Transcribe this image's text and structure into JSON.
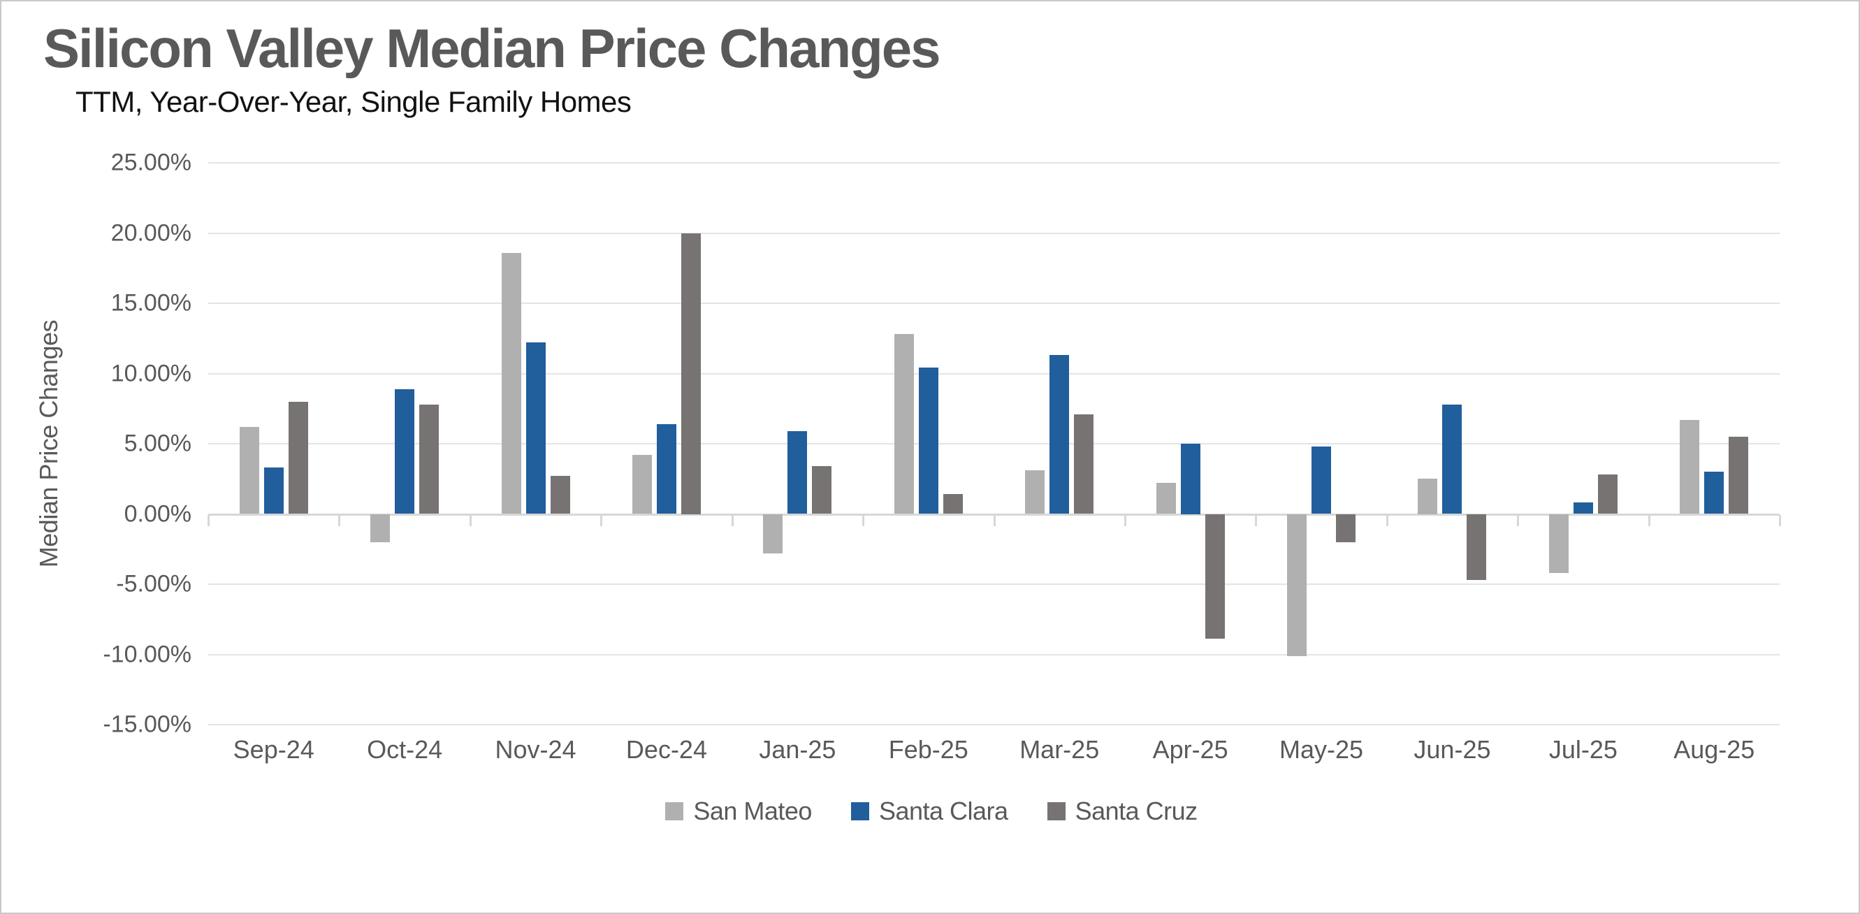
{
  "title": "Silicon Valley Median Price Changes",
  "subtitle": "TTM, Year-Over-Year, Single Family Homes",
  "y_axis_title": "Median Price Changes",
  "colors": {
    "san_mateo": "#b0b0b0",
    "santa_clara": "#215e9c",
    "santa_cruz": "#777373",
    "gridline": "#e4e4e4",
    "axis_line": "#d7d7d7",
    "text": "#595959",
    "title_text": "#595959",
    "subtitle_text": "#111111"
  },
  "chart_data": {
    "type": "bar",
    "title": "Silicon Valley Median Price Changes",
    "subtitle": "TTM, Year-Over-Year, Single Family Homes",
    "xlabel": "",
    "ylabel": "Median Price Changes",
    "ylim": [
      -15,
      25
    ],
    "y_tick_step": 5,
    "y_tick_labels": [
      "25.00%",
      "20.00%",
      "15.00%",
      "10.00%",
      "5.00%",
      "0.00%",
      "-5.00%",
      "-10.00%",
      "-15.00%"
    ],
    "grid": "horizontal",
    "legend_position": "bottom",
    "categories": [
      "Sep-24",
      "Oct-24",
      "Nov-24",
      "Dec-24",
      "Jan-25",
      "Feb-25",
      "Mar-25",
      "Apr-25",
      "May-25",
      "Jun-25",
      "Jul-25",
      "Aug-25"
    ],
    "series": [
      {
        "name": "San Mateo",
        "color": "#b0b0b0",
        "values": [
          6.2,
          -2.0,
          18.6,
          4.2,
          -2.8,
          12.8,
          3.1,
          2.2,
          -10.1,
          2.5,
          -4.2,
          6.7
        ]
      },
      {
        "name": "Santa Clara",
        "color": "#215e9c",
        "values": [
          3.3,
          8.9,
          12.2,
          6.4,
          5.9,
          10.4,
          11.3,
          5.0,
          4.8,
          7.8,
          0.8,
          3.0
        ]
      },
      {
        "name": "Santa Cruz",
        "color": "#777373",
        "values": [
          8.0,
          7.8,
          2.7,
          20.0,
          3.4,
          1.4,
          7.1,
          -8.9,
          -2.0,
          -4.7,
          2.8,
          5.5
        ]
      }
    ]
  }
}
